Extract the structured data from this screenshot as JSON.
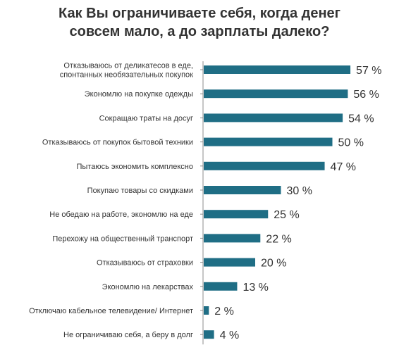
{
  "chart_data": {
    "type": "bar",
    "orientation": "horizontal",
    "title": [
      "Как Вы ограничиваете себя, когда денег",
      "совсем мало, а до зарплаты далеко?"
    ],
    "categories": [
      [
        "Отказываюсь от деликатесов в еде,",
        "спонтанных необязательных покупок"
      ],
      [
        "Экономлю на покупке одежды"
      ],
      [
        "Сокращаю траты на досуг"
      ],
      [
        "Отказываюсь от покупок бытовой техники"
      ],
      [
        "Пытаюсь экономить комплексно"
      ],
      [
        "Покупаю товары со скидками"
      ],
      [
        "Не обедаю на работе, экономлю на еде"
      ],
      [
        "Перехожу на общественный транспорт"
      ],
      [
        "Отказываюсь от страховки"
      ],
      [
        "Экономлю на лекарствах"
      ],
      [
        "Отключаю кабельное телевидение/ Интернет"
      ],
      [
        "Не ограничиваю себя, а беру в долг"
      ]
    ],
    "values": [
      57,
      56,
      54,
      50,
      47,
      30,
      25,
      22,
      20,
      13,
      2,
      4
    ],
    "value_labels": [
      "57 %",
      "56 %",
      "54 %",
      "50 %",
      "47 %",
      "30 %",
      "25 %",
      "22 %",
      "20 %",
      "13 %",
      "2 %",
      "4 %"
    ],
    "unit": "%",
    "grid": false,
    "legend": "none",
    "colors": {
      "bar": "#1f6e85",
      "axis": "#8c8c8c",
      "text": "#333333"
    }
  }
}
